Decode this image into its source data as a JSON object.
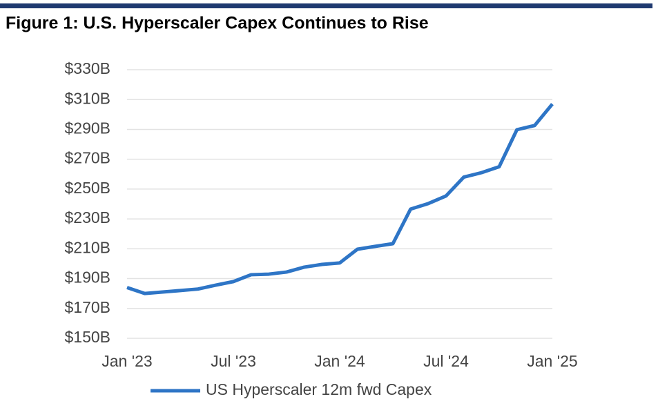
{
  "chart_data": {
    "type": "line",
    "title": "Figure 1: U.S. Hyperscaler Capex Continues to Rise",
    "x": [
      "2023-01",
      "2023-02",
      "2023-03",
      "2023-04",
      "2023-05",
      "2023-06",
      "2023-07",
      "2023-08",
      "2023-09",
      "2023-10",
      "2023-11",
      "2023-12",
      "2024-01",
      "2024-02",
      "2024-03",
      "2024-04",
      "2024-05",
      "2024-06",
      "2024-07",
      "2024-08",
      "2024-09",
      "2024-10",
      "2024-11",
      "2024-12",
      "2025-01"
    ],
    "series": [
      {
        "name": "US Hyperscaler 12m fwd Capex",
        "color": "#2e75c6",
        "values": [
          184,
          180,
          181,
          182,
          183,
          185.6,
          188,
          192.6,
          193,
          194.4,
          197.7,
          199.5,
          200.5,
          209.7,
          211.6,
          213.4,
          236.6,
          240.3,
          245.4,
          258,
          261,
          265,
          289.8,
          292.6,
          307
        ]
      }
    ],
    "ylim": [
      150,
      330
    ],
    "yticks": [
      {
        "value": 150,
        "label": "$150B"
      },
      {
        "value": 170,
        "label": "$170B"
      },
      {
        "value": 190,
        "label": "$190B"
      },
      {
        "value": 210,
        "label": "$210B"
      },
      {
        "value": 230,
        "label": "$230B"
      },
      {
        "value": 250,
        "label": "$250B"
      },
      {
        "value": 270,
        "label": "$270B"
      },
      {
        "value": 290,
        "label": "$290B"
      },
      {
        "value": 310,
        "label": "$310B"
      },
      {
        "value": 330,
        "label": "$330B"
      }
    ],
    "xticks": [
      {
        "value": "2023-01",
        "label": "Jan '23"
      },
      {
        "value": "2023-07",
        "label": "Jul '23"
      },
      {
        "value": "2024-01",
        "label": "Jan '24"
      },
      {
        "value": "2024-07",
        "label": "Jul '24"
      },
      {
        "value": "2025-01",
        "label": "Jan '25"
      }
    ],
    "grid": true,
    "legend": "bottom"
  }
}
